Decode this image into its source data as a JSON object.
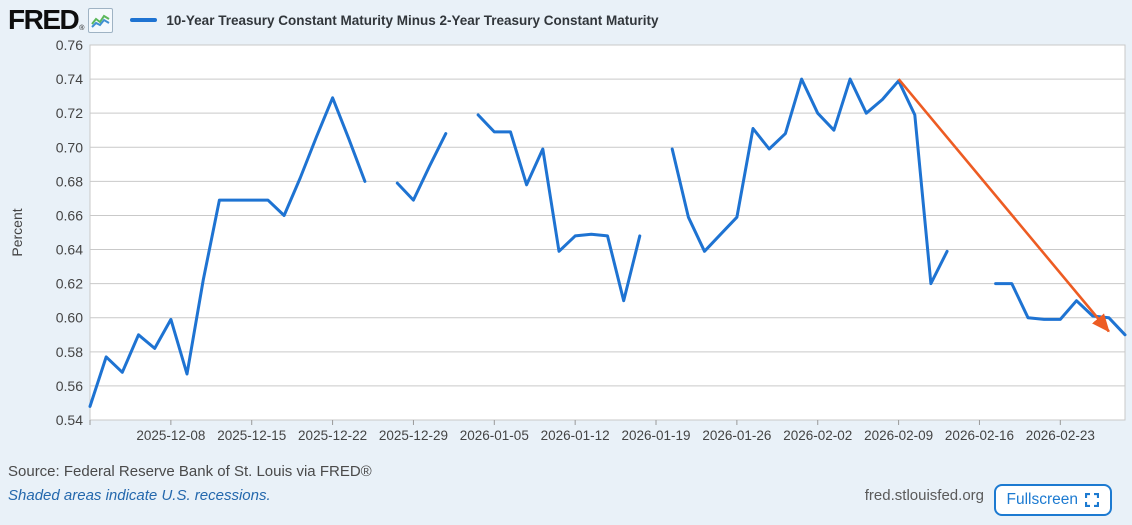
{
  "header": {
    "brand": "FRED",
    "registered_mark": "®",
    "series_title": "10-Year Treasury Constant Maturity Minus 2-Year Treasury Constant Maturity"
  },
  "footer": {
    "source": "Source: Federal Reserve Bank of St. Louis via FRED®",
    "recession_note": "Shaded areas indicate U.S. recessions.",
    "site": "fred.stlouisfed.org",
    "fullscreen_label": "Fullscreen"
  },
  "colors": {
    "background": "#e9f1f8",
    "plot_background": "#ffffff",
    "gridline": "#c9c9c9",
    "axis_text": "#444444",
    "tick_mark": "#999999",
    "series_line": "#1e73d2",
    "trend_arrow": "#ed5c23"
  },
  "chart_data": {
    "type": "line",
    "title": "10-Year Treasury Constant Maturity Minus 2-Year Treasury Constant Maturity",
    "xlabel": "",
    "ylabel": "Percent",
    "ylim": [
      0.54,
      0.76
    ],
    "ytick_step": 0.02,
    "grid": "horizontal",
    "legend_position": "top-left",
    "x": [
      "2025-12-01",
      "2025-12-02",
      "2025-12-03",
      "2025-12-04",
      "2025-12-05",
      "2025-12-08",
      "2025-12-09",
      "2025-12-10",
      "2025-12-11",
      "2025-12-12",
      "2025-12-15",
      "2025-12-16",
      "2025-12-17",
      "2025-12-18",
      "2025-12-19",
      "2025-12-22",
      "2025-12-23",
      "2025-12-24",
      "2025-12-25",
      "2025-12-26",
      "2025-12-29",
      "2025-12-30",
      "2025-12-31",
      "2026-01-01",
      "2026-01-02",
      "2026-01-05",
      "2026-01-06",
      "2026-01-07",
      "2026-01-08",
      "2026-01-09",
      "2026-01-12",
      "2026-01-13",
      "2026-01-14",
      "2026-01-15",
      "2026-01-16",
      "2026-01-19",
      "2026-01-20",
      "2026-01-21",
      "2026-01-22",
      "2026-01-23",
      "2026-01-26",
      "2026-01-27",
      "2026-01-28",
      "2026-01-29",
      "2026-01-30",
      "2026-02-02",
      "2026-02-03",
      "2026-02-04",
      "2026-02-05",
      "2026-02-06",
      "2026-02-09",
      "2026-02-10",
      "2026-02-11",
      "2026-02-12",
      "2026-02-13",
      "2026-02-16",
      "2026-02-17",
      "2026-02-18",
      "2026-02-19",
      "2026-02-20",
      "2026-02-23",
      "2026-02-24",
      "2026-02-25",
      "2026-02-26",
      "2026-02-27"
    ],
    "series": [
      {
        "name": "10-Year Treasury Constant Maturity Minus 2-Year Treasury Constant Maturity",
        "units": "Percent",
        "values": [
          0.548,
          0.577,
          0.568,
          0.59,
          0.582,
          0.599,
          0.567,
          0.622,
          0.669,
          0.669,
          0.669,
          0.669,
          0.66,
          0.682,
          0.706,
          0.729,
          0.705,
          0.68,
          null,
          0.679,
          0.669,
          0.689,
          0.708,
          null,
          0.719,
          0.709,
          0.709,
          0.678,
          0.699,
          0.639,
          0.648,
          0.649,
          0.648,
          0.61,
          0.648,
          null,
          0.699,
          0.659,
          0.639,
          0.649,
          0.659,
          0.711,
          0.699,
          0.708,
          0.74,
          0.72,
          0.71,
          0.74,
          0.72,
          0.728,
          0.739,
          0.719,
          0.62,
          0.639,
          null,
          null,
          0.62,
          0.62,
          0.6,
          0.599,
          0.599,
          0.61,
          0.601,
          0.6,
          0.59
        ]
      }
    ],
    "x_tick_labels": [
      "2025-12-08",
      "2025-12-15",
      "2025-12-22",
      "2025-12-29",
      "2026-01-05",
      "2026-01-12",
      "2026-01-19",
      "2026-01-26",
      "2026-02-02",
      "2026-02-09",
      "2026-02-16",
      "2026-02-23"
    ],
    "annotation_arrow": {
      "description": "downward trend arrow from the 2026-02-09 peak to the series end",
      "start": {
        "date": "2026-02-09",
        "value": 0.74
      },
      "end": {
        "date": "2026-02-26",
        "value": 0.592
      }
    }
  }
}
